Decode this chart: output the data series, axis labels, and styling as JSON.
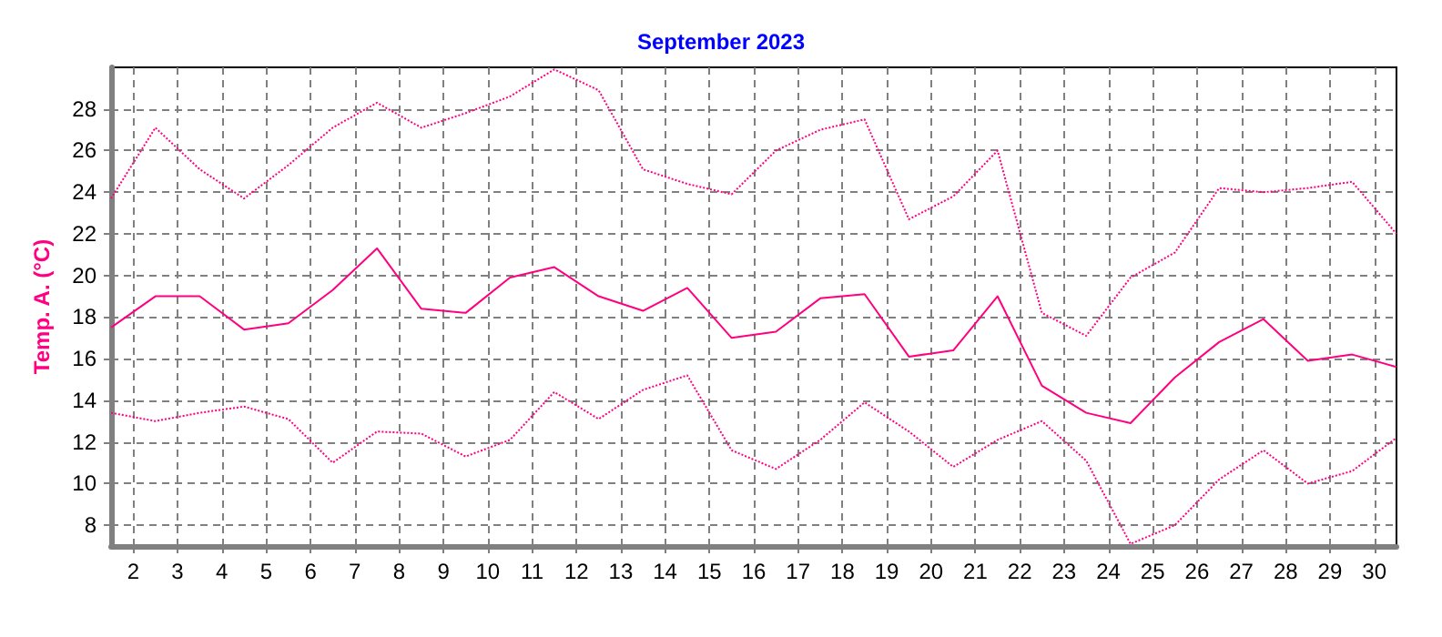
{
  "chart_data": {
    "type": "line",
    "title": "September 2023",
    "ylabel": "Temp. A. (°C)",
    "x": [
      1.5,
      2.5,
      3.5,
      4.5,
      5.5,
      6.5,
      7.5,
      8.5,
      9.5,
      10.5,
      11.5,
      12.5,
      13.5,
      14.5,
      15.5,
      16.5,
      17.5,
      18.5,
      19.5,
      20.5,
      21.5,
      22.5,
      23.5,
      24.5,
      25.5,
      26.5,
      27.5,
      28.5,
      29.5,
      30.5
    ],
    "series": [
      {
        "color": "#ff0080",
        "line_style": "dotted",
        "values": [
          23.7,
          27.1,
          25.1,
          23.7,
          25.3,
          27.1,
          28.3,
          27.1,
          27.8,
          28.6,
          29.9,
          28.9,
          25.1,
          24.4,
          23.9,
          26.0,
          27.0,
          27.5,
          22.7,
          23.8,
          26.0,
          18.2,
          17.1,
          19.9,
          21.1,
          24.2,
          24.0,
          24.2,
          24.5,
          22.0
        ]
      },
      {
        "color": "#ff0080",
        "line_style": "solid",
        "values": [
          17.5,
          19.0,
          19.0,
          17.4,
          17.7,
          19.3,
          21.3,
          18.4,
          18.2,
          19.9,
          20.4,
          19.0,
          18.3,
          19.4,
          17.0,
          17.3,
          18.9,
          19.1,
          16.1,
          16.4,
          19.0,
          14.7,
          13.4,
          12.9,
          15.1,
          16.8,
          17.9,
          15.9,
          16.2,
          15.6
        ]
      },
      {
        "color": "#ff0080",
        "line_style": "dotted",
        "values": [
          13.4,
          13.0,
          13.4,
          13.7,
          13.1,
          11.0,
          12.5,
          12.4,
          11.3,
          12.1,
          14.4,
          13.1,
          14.5,
          15.2,
          11.6,
          10.7,
          12.1,
          13.9,
          12.5,
          10.8,
          12.1,
          13.0,
          11.1,
          7.1,
          8.0,
          10.2,
          11.6,
          10.0,
          10.6,
          12.2
        ]
      }
    ],
    "xlim": [
      1.5,
      30.5
    ],
    "xticks": [
      2,
      3,
      4,
      5,
      6,
      7,
      8,
      9,
      10,
      11,
      12,
      13,
      14,
      15,
      16,
      17,
      18,
      19,
      20,
      21,
      22,
      23,
      24,
      25,
      26,
      27,
      28,
      29,
      30
    ],
    "ylim": [
      7,
      30
    ],
    "yticks": [
      8,
      10,
      12,
      14,
      16,
      18,
      20,
      22,
      24,
      26,
      28
    ],
    "grid": true,
    "marker": "none"
  }
}
